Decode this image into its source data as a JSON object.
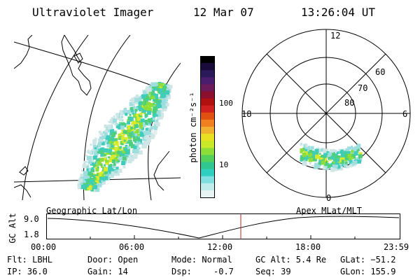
{
  "header": {
    "title": "Ultraviolet Imager",
    "date": "12 Mar 07",
    "time": "13:26:04 UT"
  },
  "colorbar": {
    "axis_label": "photon cm⁻²s⁻¹",
    "ticks": [
      "100",
      "10"
    ],
    "colors": [
      "#000000",
      "#1a0a3a",
      "#2b1a5a",
      "#4a1d6e",
      "#6b1a5a",
      "#8b1030",
      "#b01010",
      "#d02020",
      "#e05010",
      "#f08020",
      "#f0b030",
      "#e8e020",
      "#c8e828",
      "#8ede3a",
      "#52d05a",
      "#30c890",
      "#30d0c0",
      "#80e0e0",
      "#c0ecec",
      "#e8f4f4"
    ]
  },
  "geo_map": {
    "label": "Geographic Lat/Lon"
  },
  "polar_map": {
    "label": "Apex MLat/MLT",
    "mlt_labels": {
      "top": "12",
      "right": "6",
      "bottom": "0",
      "left": "18"
    },
    "lat_labels": [
      "60",
      "70",
      "80"
    ]
  },
  "timeline": {
    "ylabel": "GC Alt",
    "ytick_top": "9.0",
    "ytick_bottom": "1.8",
    "xticks": [
      "00:00",
      "06:00",
      "12:00",
      "18:00",
      "23:59"
    ],
    "marker_color": "#c02020"
  },
  "info": {
    "flt": "Flt: LBHL",
    "ip": "IP: 36.0",
    "door": "Door: Open",
    "gain": "Gain: 14",
    "mode": "Mode: Normal",
    "dsp": "Dsp:",
    "dsp_value": "-0.7",
    "gc_alt": "GC Alt: 5.4 Re",
    "seq": "Seq: 39",
    "glat": "GLat: −51.2",
    "glon": "GLon: 155.9"
  }
}
